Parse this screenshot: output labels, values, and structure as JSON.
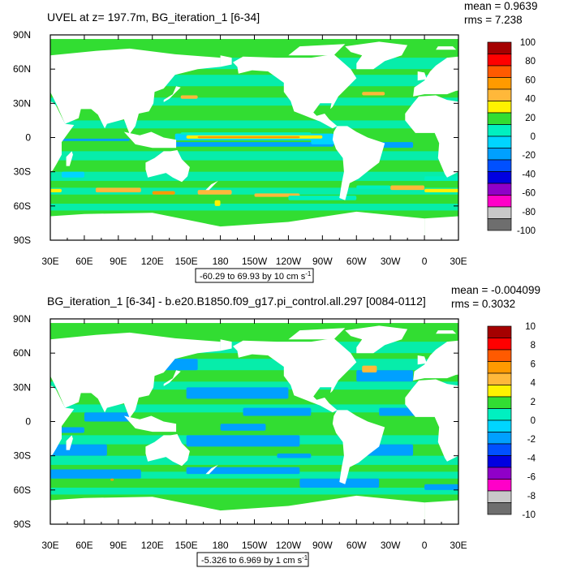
{
  "panels": [
    {
      "title": "UVEL at z= 197.7m, BG_iteration_1 [6-34]",
      "mean_text": "mean = 0.9639",
      "rms_text": "rms = 7.238",
      "range_text": "-60.29 to 69.93 by 10 cm s",
      "range_unit_sup": "-1"
    },
    {
      "title": "BG_iteration_1 [6-34] - b.e20.B1850.f09_g17.pi_control.all.297 [0084-0112]",
      "mean_text": "mean = -0.004099",
      "rms_text": "rms = 0.3032",
      "range_text": "-5.326 to 6.969 by 1 cm s",
      "range_unit_sup": "-1"
    }
  ],
  "chart_data": [
    {
      "type": "heatmap",
      "title": "UVEL at z= 197.7m, BG_iteration_1 [6-34]",
      "xlabel": "",
      "ylabel": "",
      "x_ticks": [
        "30E",
        "60E",
        "90E",
        "120E",
        "150E",
        "180",
        "150W",
        "120W",
        "90W",
        "60W",
        "30W",
        "0",
        "30E"
      ],
      "y_ticks": [
        "90N",
        "60N",
        "30N",
        "0",
        "30S",
        "60S",
        "90S"
      ],
      "xlim_deg_east": [
        30,
        390
      ],
      "ylim_deg": [
        -90,
        90
      ],
      "colorbar_levels": [
        100,
        80,
        60,
        40,
        20,
        0,
        -20,
        -40,
        -60,
        -80,
        -100
      ],
      "colorbar_colors": [
        "#a50000",
        "#ff0000",
        "#ff5a00",
        "#ff9a00",
        "#ffb83a",
        "#fff200",
        "#32dd32",
        "#00f0c0",
        "#00d5ff",
        "#00a0ff",
        "#0050ff",
        "#0000e0",
        "#9000c8",
        "#ff00c8",
        "#c8c8c8",
        "#6e6e6e"
      ],
      "stats": {
        "mean": 0.9639,
        "rms": 7.238
      },
      "contour_range": {
        "min": -60.29,
        "max": 69.93,
        "interval": 10
      }
    },
    {
      "type": "heatmap",
      "title": "BG_iteration_1 [6-34] - b.e20.B1850.f09_g17.pi_control.all.297 [0084-0112]",
      "xlabel": "",
      "ylabel": "",
      "x_ticks": [
        "30E",
        "60E",
        "90E",
        "120E",
        "150E",
        "180",
        "150W",
        "120W",
        "90W",
        "60W",
        "30W",
        "0",
        "30E"
      ],
      "y_ticks": [
        "90N",
        "60N",
        "30N",
        "0",
        "30S",
        "60S",
        "90S"
      ],
      "xlim_deg_east": [
        30,
        390
      ],
      "ylim_deg": [
        -90,
        90
      ],
      "colorbar_levels": [
        10,
        8,
        6,
        4,
        2,
        0,
        -2,
        -4,
        -6,
        -8,
        -10
      ],
      "colorbar_colors": [
        "#a50000",
        "#ff0000",
        "#ff5a00",
        "#ff9a00",
        "#ffb83a",
        "#fff200",
        "#32dd32",
        "#00f0c0",
        "#00d5ff",
        "#00a0ff",
        "#0050ff",
        "#0000e0",
        "#9000c8",
        "#ff00c8",
        "#c8c8c8",
        "#6e6e6e"
      ],
      "stats": {
        "mean": -0.004099,
        "rms": 0.3032
      },
      "contour_range": {
        "min": -5.326,
        "max": 6.969,
        "interval": 1
      }
    }
  ]
}
